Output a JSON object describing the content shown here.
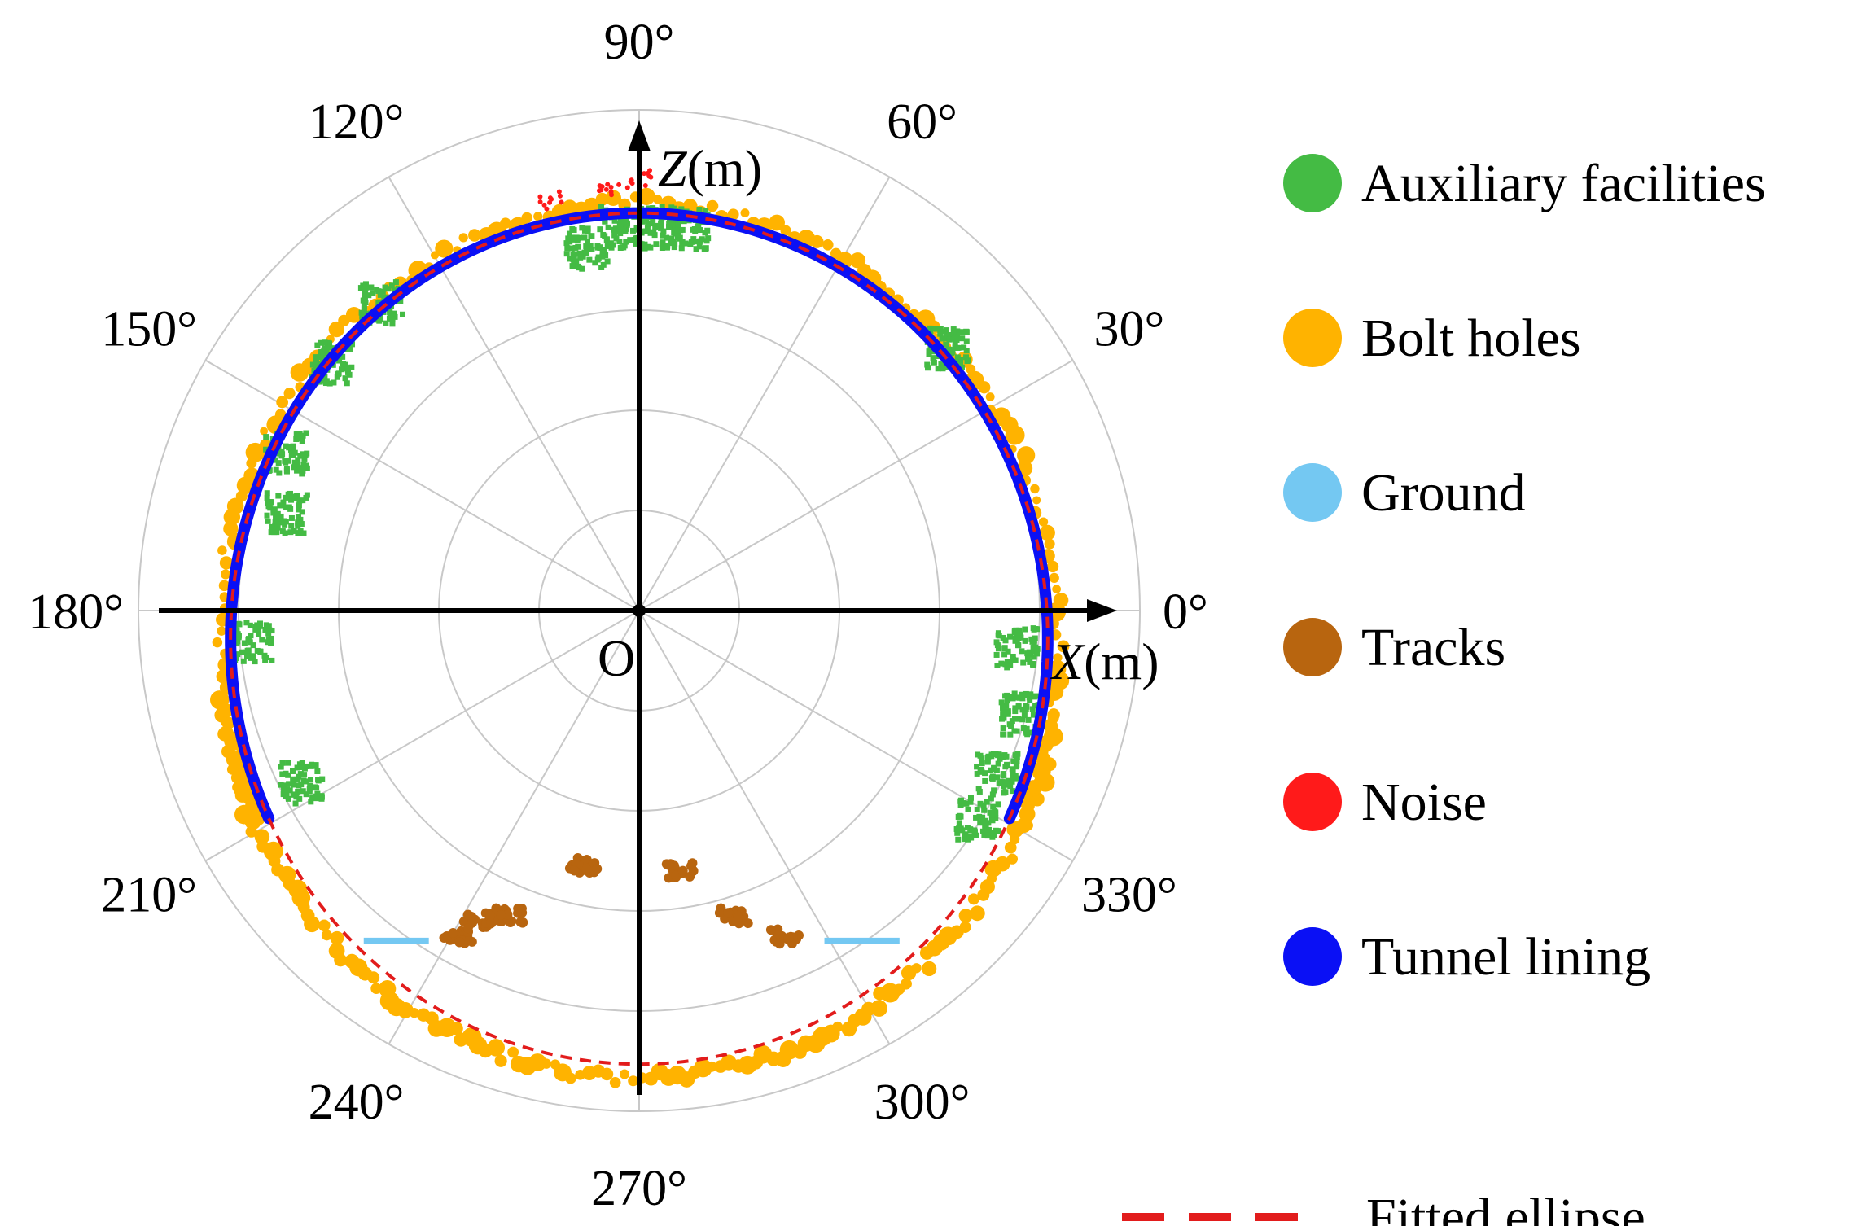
{
  "chart_data": {
    "type": "scatter",
    "subtype": "polar point cloud (tunnel cross-section)",
    "title": "",
    "angular_ticks": [
      "0°",
      "30°",
      "60°",
      "90°",
      "120°",
      "150°",
      "180°",
      "210°",
      "240°",
      "270°",
      "300°",
      "330°"
    ],
    "angular_tick_degrees": [
      0,
      30,
      60,
      90,
      120,
      150,
      180,
      210,
      240,
      270,
      300,
      330
    ],
    "radial_rings": [
      1,
      2,
      3,
      4,
      5
    ],
    "xlabel_italic": "X",
    "ylabel_italic": "Z",
    "unit_label": "(m)",
    "origin_label": "O",
    "legend_position": "right",
    "series": [
      {
        "name": "Auxiliary facilities",
        "color": "#44bb44",
        "marker": "dot"
      },
      {
        "name": "Bolt holes",
        "color": "#ffb300",
        "marker": "dot"
      },
      {
        "name": "Ground",
        "color": "#74c8f2",
        "marker": "dot"
      },
      {
        "name": "Tracks",
        "color": "#b8650f",
        "marker": "dot"
      },
      {
        "name": "Noise",
        "color": "#ff1a1a",
        "marker": "dot"
      },
      {
        "name": "Tunnel lining",
        "color": "#0a10f5",
        "marker": "dot"
      },
      {
        "name": "Fitted ellipse",
        "color": "#e21c1c",
        "marker": "dashed-line"
      }
    ],
    "fitted_ellipse": {
      "center_x": 0,
      "center_z": -0.28,
      "semi_axis_x": 4.08,
      "semi_axis_z": 4.25
    },
    "tunnel_lining_arc_deg": [
      205,
      335
    ],
    "ground_segments": [
      {
        "x_from": -2.75,
        "x_to": -2.1,
        "z": -3.3
      },
      {
        "x_from": 1.85,
        "x_to": 2.6,
        "z": -3.3
      }
    ],
    "tracks_clusters": [
      {
        "x": -1.8,
        "z": -3.25
      },
      {
        "x": -1.6,
        "z": -3.1
      },
      {
        "x": -1.3,
        "z": -3.05
      },
      {
        "x": -0.55,
        "z": -2.55
      },
      {
        "x": 0.4,
        "z": -2.6
      },
      {
        "x": 0.95,
        "z": -3.05
      },
      {
        "x": 1.45,
        "z": -3.25
      }
    ],
    "auxiliary_clusters": [
      {
        "x": -0.55,
        "z": 3.65
      },
      {
        "x": -0.2,
        "z": 3.85
      },
      {
        "x": 0.2,
        "z": 3.85
      },
      {
        "x": 0.45,
        "z": 3.85
      },
      {
        "x": -3.1,
        "z": 2.5
      },
      {
        "x": -3.55,
        "z": 1.6
      },
      {
        "x": -3.55,
        "z": 1.0
      },
      {
        "x": -3.9,
        "z": -0.3
      },
      {
        "x": -3.4,
        "z": -1.7
      },
      {
        "x": 3.75,
        "z": -0.35
      },
      {
        "x": 3.8,
        "z": -1.0
      },
      {
        "x": 3.55,
        "z": -1.6
      },
      {
        "x": 3.35,
        "z": -2.05
      },
      {
        "x": 3.05,
        "z": 2.65
      },
      {
        "x": -2.6,
        "z": 3.1
      }
    ],
    "noise_clusters": [
      {
        "x": -0.9,
        "z": 4.1
      },
      {
        "x": -0.3,
        "z": 4.2
      },
      {
        "x": 0.0,
        "z": 4.3
      }
    ]
  }
}
